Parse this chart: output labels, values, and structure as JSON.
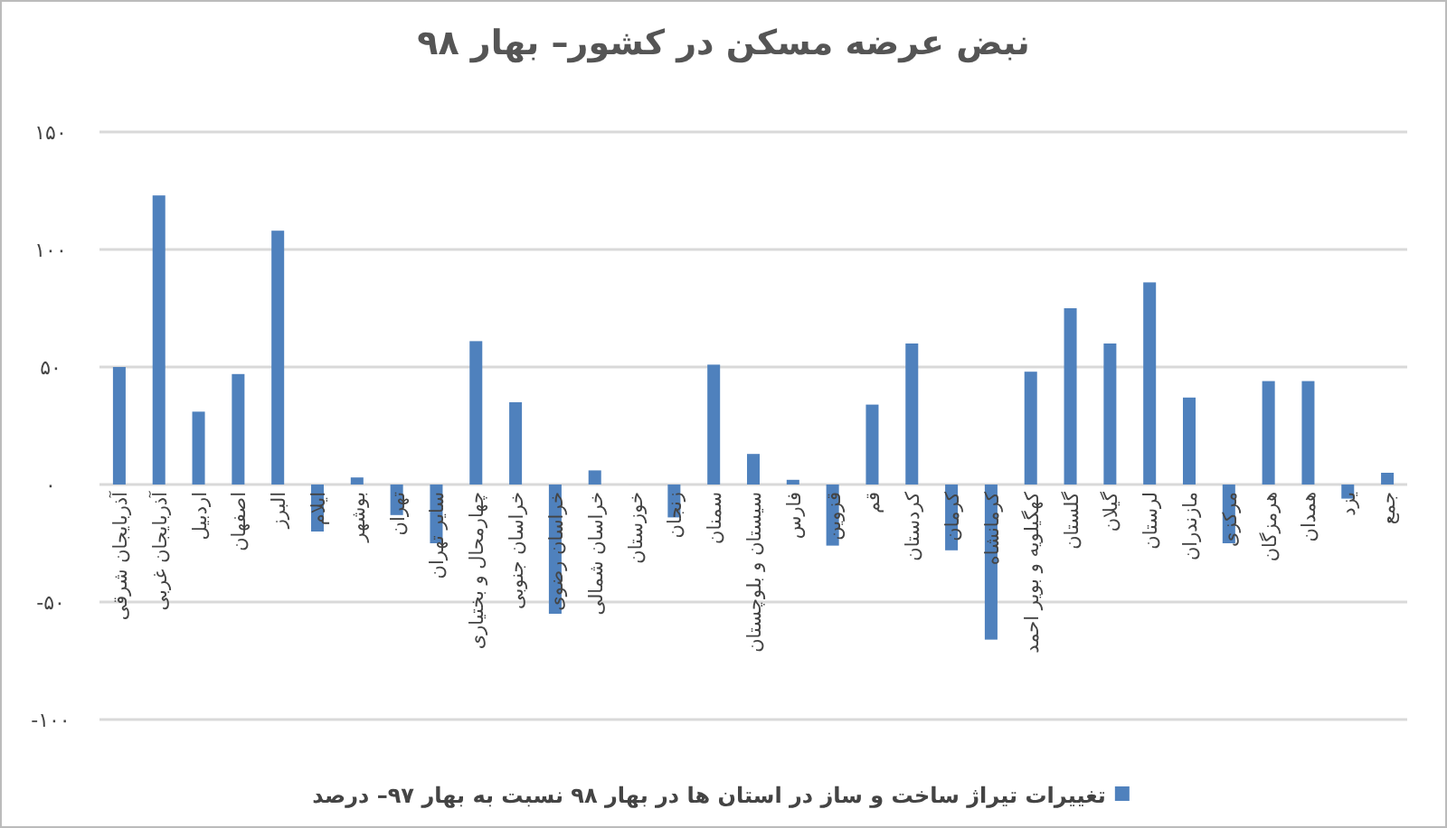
{
  "chart_data": {
    "type": "bar",
    "title": "نبض عرضه مسکن در کشور– بهار ۹۸",
    "categories": [
      "آذربایجان شرقی",
      "آذربایجان غربی",
      "اردبیل",
      "اصفهان",
      "البرز",
      "ایلام",
      "بوشهر",
      "تهران",
      "سایر تهران",
      "چهارمحال و بختیاری",
      "خراسان جنوبی",
      "خراسان رضوی",
      "خراسان شمالی",
      "خوزستان",
      "زنجان",
      "سمنان",
      "سیستان و بلوچستان",
      "فارس",
      "قزوین",
      "قم",
      "کردستان",
      "کرمان",
      "کرمانشاه",
      "کهگیلویه و بویر احمد",
      "گلستان",
      "گیلان",
      "لرستان",
      "مازندران",
      "مرکزی",
      "هرمزگان",
      "همدان",
      "یزد",
      "جمع"
    ],
    "series": [
      {
        "name": "تغییرات تیراژ ساخت و ساز در استان ها در بهار ۹۸ نسبت به بهار ۹۷– درصد",
        "color": "#4f81bd",
        "values": [
          50,
          123,
          31,
          47,
          108,
          -20,
          3,
          -13,
          -25,
          61,
          35,
          -55,
          6,
          0,
          -14,
          51,
          13,
          2,
          -26,
          34,
          60,
          -28,
          -66,
          48,
          75,
          60,
          86,
          37,
          -25,
          44,
          44,
          -6,
          5
        ]
      }
    ],
    "ylim": [
      -100,
      150
    ],
    "yticks": [
      {
        "value": -100,
        "label": "-۱۰۰"
      },
      {
        "value": -50,
        "label": "-۵۰"
      },
      {
        "value": 0,
        "label": "۰"
      },
      {
        "value": 50,
        "label": "۵۰"
      },
      {
        "value": 100,
        "label": "۱۰۰"
      },
      {
        "value": 150,
        "label": "۱۵۰"
      }
    ],
    "grid": "y",
    "legend": "bottom"
  }
}
